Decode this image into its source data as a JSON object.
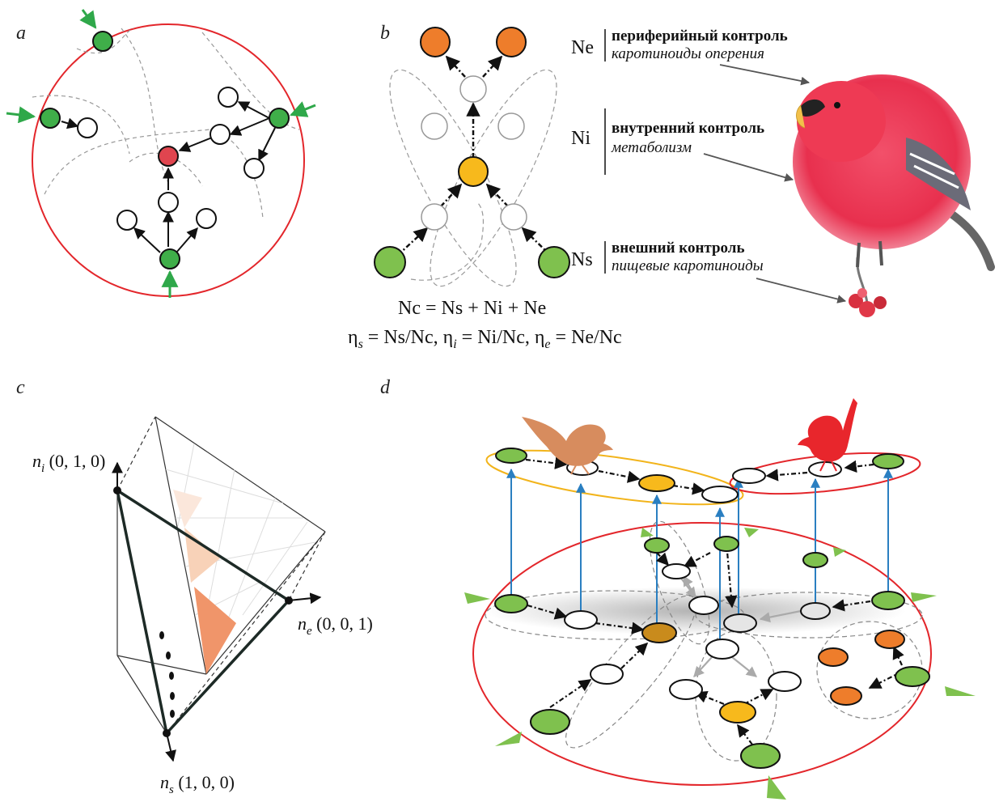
{
  "panels": {
    "a": {
      "label": "a"
    },
    "b": {
      "label": "b",
      "node_labels": {
        "ne": "Ne",
        "ni": "Ni",
        "ns": "Ns"
      },
      "annotations": {
        "ne_title": "периферийный контроль",
        "ne_sub": "каротиноиды оперения",
        "ni_title": "внутренний контроль",
        "ni_sub": "метаболизм",
        "ns_title": "внешний контроль",
        "ns_sub": "пищевые каротиноиды"
      },
      "formula1": "Nc = Ns + Ni + Ne",
      "formula2": {
        "p1": "η",
        "s1": "s",
        "p2": " = Ns/Nc, η",
        "s2": "i",
        "p3": " = Ni/Nc, η",
        "s3": "e",
        "p4": " = Ne/Nc"
      }
    },
    "c": {
      "label": "c",
      "axes": {
        "ni": {
          "var": "n",
          "sub": "i",
          "coords": " (0, 1, 0)"
        },
        "ne": {
          "var": "n",
          "sub": "e",
          "coords": " (0, 0, 1)"
        },
        "ns": {
          "var": "n",
          "sub": "s",
          "coords": " (1, 0, 0)"
        }
      }
    },
    "d": {
      "label": "d"
    }
  },
  "colors": {
    "source_green": "#6cbf4a",
    "bright_green": "#3fae49",
    "target_red": "#e0454f",
    "intermediate_yellow": "#f7b91c",
    "end_orange": "#ee7d2b",
    "boundary_red": "#e3262b",
    "arrow_blue": "#2a7fc1",
    "brown_bird": "#d78c5e",
    "red_bird": "#e8262c",
    "simplex_orange": "#f0956a"
  },
  "icons": {
    "bird_photo": "pine-grosbeak-icon",
    "brown_bird": "brown-bird-silhouette-icon",
    "red_bird": "red-bird-silhouette-icon"
  }
}
